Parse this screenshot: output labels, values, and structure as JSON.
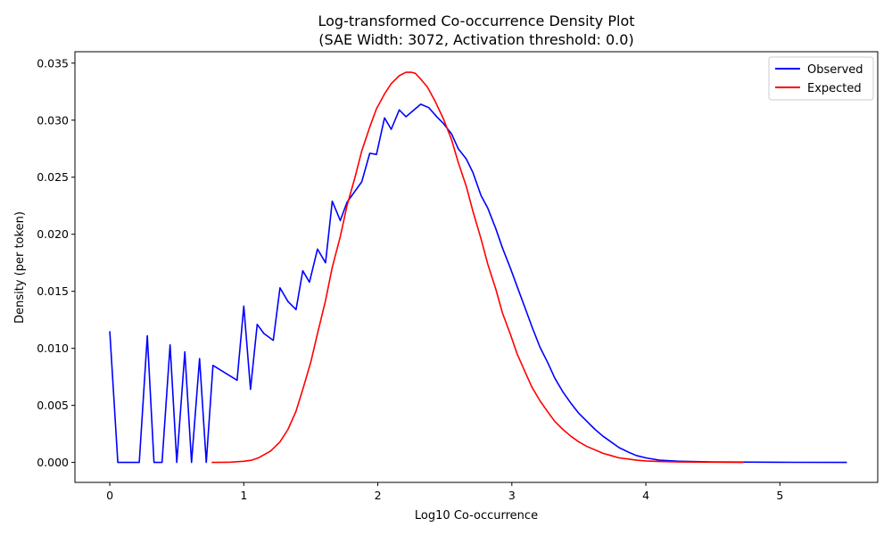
{
  "chart_data": {
    "type": "line",
    "title_lines": [
      "Log-transformed Co-occurrence Density Plot",
      "(SAE Width: 3072, Activation threshold: 0.0)"
    ],
    "xlabel": "Log10 Co-occurrence",
    "ylabel": "Density (per token)",
    "xlim": [
      -0.26,
      5.73
    ],
    "ylim": [
      -0.00175,
      0.036
    ],
    "xticks": [
      0,
      1,
      2,
      3,
      4,
      5
    ],
    "xtick_labels": [
      "0",
      "1",
      "2",
      "3",
      "4",
      "5"
    ],
    "yticks": [
      0,
      0.005,
      0.01,
      0.015,
      0.02,
      0.025,
      0.03,
      0.035
    ],
    "ytick_labels": [
      "0.000",
      "0.005",
      "0.010",
      "0.015",
      "0.020",
      "0.025",
      "0.030",
      "0.035"
    ],
    "grid": false,
    "legend_position": "top-right",
    "series": [
      {
        "name": "Observed",
        "color": "#0000ff",
        "points": [
          [
            0.0,
            0.0115
          ],
          [
            0.06,
            0.0
          ],
          [
            0.22,
            0.0
          ],
          [
            0.28,
            0.0111
          ],
          [
            0.33,
            0.0
          ],
          [
            0.39,
            0.0
          ],
          [
            0.45,
            0.0103
          ],
          [
            0.5,
            0.0
          ],
          [
            0.56,
            0.0097
          ],
          [
            0.61,
            0.0
          ],
          [
            0.67,
            0.0091
          ],
          [
            0.72,
            0.0
          ],
          [
            0.77,
            0.0085
          ],
          [
            0.95,
            0.0072
          ],
          [
            1.0,
            0.0137
          ],
          [
            1.05,
            0.0064
          ],
          [
            1.1,
            0.0121
          ],
          [
            1.15,
            0.0113
          ],
          [
            1.22,
            0.0107
          ],
          [
            1.27,
            0.0153
          ],
          [
            1.33,
            0.0141
          ],
          [
            1.39,
            0.0134
          ],
          [
            1.44,
            0.0168
          ],
          [
            1.49,
            0.0158
          ],
          [
            1.55,
            0.0187
          ],
          [
            1.61,
            0.0175
          ],
          [
            1.66,
            0.0229
          ],
          [
            1.72,
            0.0212
          ],
          [
            1.77,
            0.0228
          ],
          [
            1.88,
            0.0246
          ],
          [
            1.94,
            0.0271
          ],
          [
            1.99,
            0.027
          ],
          [
            2.05,
            0.0302
          ],
          [
            2.1,
            0.0292
          ],
          [
            2.16,
            0.0309
          ],
          [
            2.21,
            0.0303
          ],
          [
            2.27,
            0.0309
          ],
          [
            2.32,
            0.0314
          ],
          [
            2.38,
            0.0311
          ],
          [
            2.44,
            0.0303
          ],
          [
            2.49,
            0.0297
          ],
          [
            2.55,
            0.0288
          ],
          [
            2.6,
            0.0275
          ],
          [
            2.66,
            0.0266
          ],
          [
            2.71,
            0.0254
          ],
          [
            2.77,
            0.0234
          ],
          [
            2.82,
            0.0223
          ],
          [
            2.88,
            0.0205
          ],
          [
            2.93,
            0.0188
          ],
          [
            2.99,
            0.017
          ],
          [
            3.04,
            0.0154
          ],
          [
            3.1,
            0.0135
          ],
          [
            3.15,
            0.0119
          ],
          [
            3.21,
            0.0101
          ],
          [
            3.27,
            0.0087
          ],
          [
            3.32,
            0.0074
          ],
          [
            3.38,
            0.0062
          ],
          [
            3.44,
            0.0052
          ],
          [
            3.5,
            0.0043
          ],
          [
            3.56,
            0.0036
          ],
          [
            3.62,
            0.0029
          ],
          [
            3.68,
            0.0023
          ],
          [
            3.74,
            0.0018
          ],
          [
            3.8,
            0.0013
          ],
          [
            3.87,
            0.0009
          ],
          [
            3.93,
            0.0006
          ],
          [
            4.0,
            0.0004
          ],
          [
            4.1,
            0.0002
          ],
          [
            4.25,
            0.0001
          ],
          [
            4.5,
            4e-05
          ],
          [
            5.0,
            1e-05
          ],
          [
            5.5,
            0.0
          ]
        ]
      },
      {
        "name": "Expected",
        "color": "#ff0000",
        "points": [
          [
            0.76,
            0.0
          ],
          [
            0.9,
            2e-05
          ],
          [
            1.0,
            0.0001
          ],
          [
            1.06,
            0.0002
          ],
          [
            1.11,
            0.0004
          ],
          [
            1.2,
            0.001
          ],
          [
            1.27,
            0.0018
          ],
          [
            1.33,
            0.0029
          ],
          [
            1.39,
            0.0045
          ],
          [
            1.44,
            0.0064
          ],
          [
            1.5,
            0.0088
          ],
          [
            1.55,
            0.0113
          ],
          [
            1.61,
            0.0142
          ],
          [
            1.66,
            0.0171
          ],
          [
            1.72,
            0.0198
          ],
          [
            1.77,
            0.0225
          ],
          [
            1.83,
            0.025
          ],
          [
            1.88,
            0.0273
          ],
          [
            1.94,
            0.0294
          ],
          [
            1.99,
            0.031
          ],
          [
            2.05,
            0.0323
          ],
          [
            2.1,
            0.0332
          ],
          [
            2.16,
            0.0339
          ],
          [
            2.21,
            0.0342
          ],
          [
            2.25,
            0.0342
          ],
          [
            2.28,
            0.0341
          ],
          [
            2.32,
            0.0336
          ],
          [
            2.37,
            0.0329
          ],
          [
            2.43,
            0.0316
          ],
          [
            2.49,
            0.0301
          ],
          [
            2.55,
            0.0283
          ],
          [
            2.6,
            0.0263
          ],
          [
            2.66,
            0.0242
          ],
          [
            2.71,
            0.022
          ],
          [
            2.77,
            0.0196
          ],
          [
            2.82,
            0.0174
          ],
          [
            2.88,
            0.0152
          ],
          [
            2.93,
            0.0131
          ],
          [
            2.99,
            0.0112
          ],
          [
            3.04,
            0.0095
          ],
          [
            3.1,
            0.0079
          ],
          [
            3.15,
            0.0066
          ],
          [
            3.21,
            0.0054
          ],
          [
            3.27,
            0.0044
          ],
          [
            3.32,
            0.0036
          ],
          [
            3.38,
            0.0029
          ],
          [
            3.44,
            0.0023
          ],
          [
            3.5,
            0.0018
          ],
          [
            3.56,
            0.0014
          ],
          [
            3.62,
            0.0011
          ],
          [
            3.68,
            0.0008
          ],
          [
            3.74,
            0.0006
          ],
          [
            3.8,
            0.0004
          ],
          [
            3.87,
            0.0003
          ],
          [
            3.93,
            0.0002
          ],
          [
            4.0,
            0.00013
          ],
          [
            4.1,
            8e-05
          ],
          [
            4.25,
            4e-05
          ],
          [
            4.5,
            2e-05
          ],
          [
            4.73,
            0.0
          ]
        ]
      }
    ]
  }
}
